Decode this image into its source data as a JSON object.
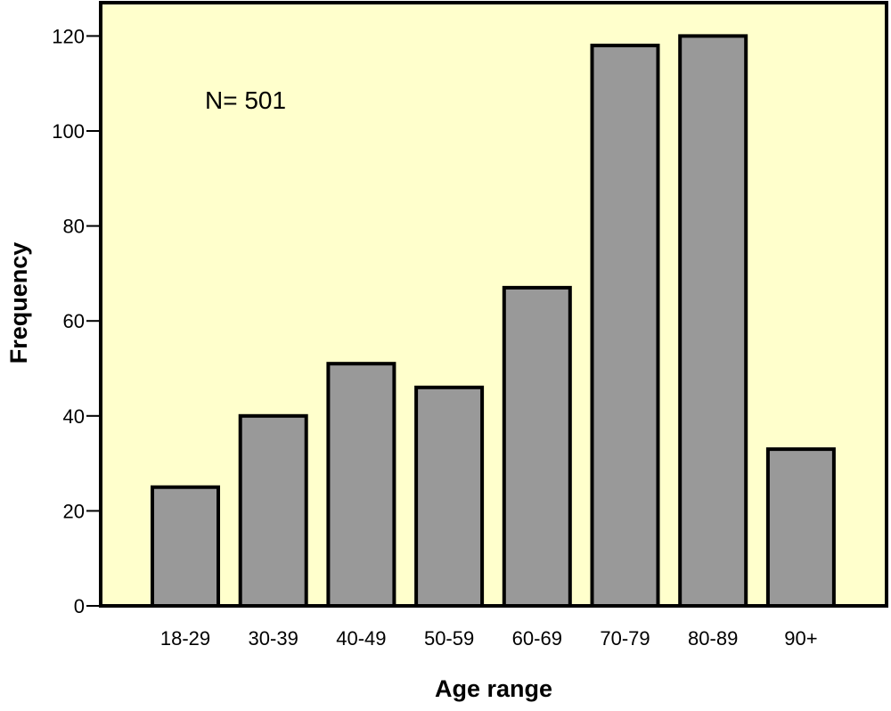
{
  "chart_data": {
    "type": "bar",
    "categories": [
      "18-29",
      "30-39",
      "40-49",
      "50-59",
      "60-69",
      "70-79",
      "80-89",
      "90+"
    ],
    "values": [
      25,
      40,
      51,
      46,
      67,
      118,
      120,
      33
    ],
    "xlabel": "Age range",
    "ylabel": "Frequency",
    "ylim": [
      0,
      127
    ],
    "yticks": [
      0,
      20,
      40,
      60,
      80,
      100,
      120
    ],
    "annotation": "N= 501",
    "grid": false,
    "legend": "none",
    "colors": {
      "plot_background": "#FFFFCC",
      "bar_fill": "#999999",
      "bar_stroke": "#000000"
    }
  }
}
